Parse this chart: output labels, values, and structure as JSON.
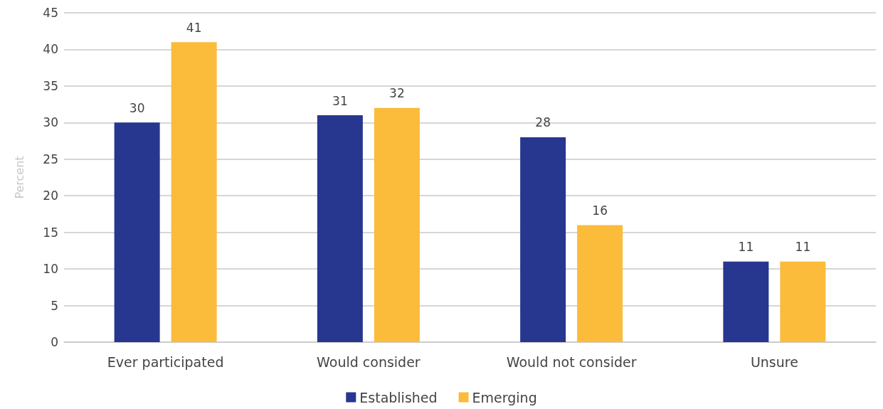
{
  "chart_data": {
    "type": "bar",
    "ylabel": "Percent",
    "categories": [
      "Ever participated",
      "Would consider",
      "Would not consider",
      "Unsure"
    ],
    "series": [
      {
        "name": "Established",
        "color": "#27368f",
        "values": [
          30,
          31,
          28,
          11
        ]
      },
      {
        "name": "Emerging",
        "color": "#fbbb3b",
        "values": [
          41,
          32,
          16,
          11
        ]
      }
    ],
    "ylim": [
      0,
      45
    ],
    "yticks": [
      0,
      5,
      10,
      15,
      20,
      25,
      30,
      35,
      40,
      45
    ],
    "grid": "y",
    "legend": "bottom",
    "data_labels": true
  }
}
